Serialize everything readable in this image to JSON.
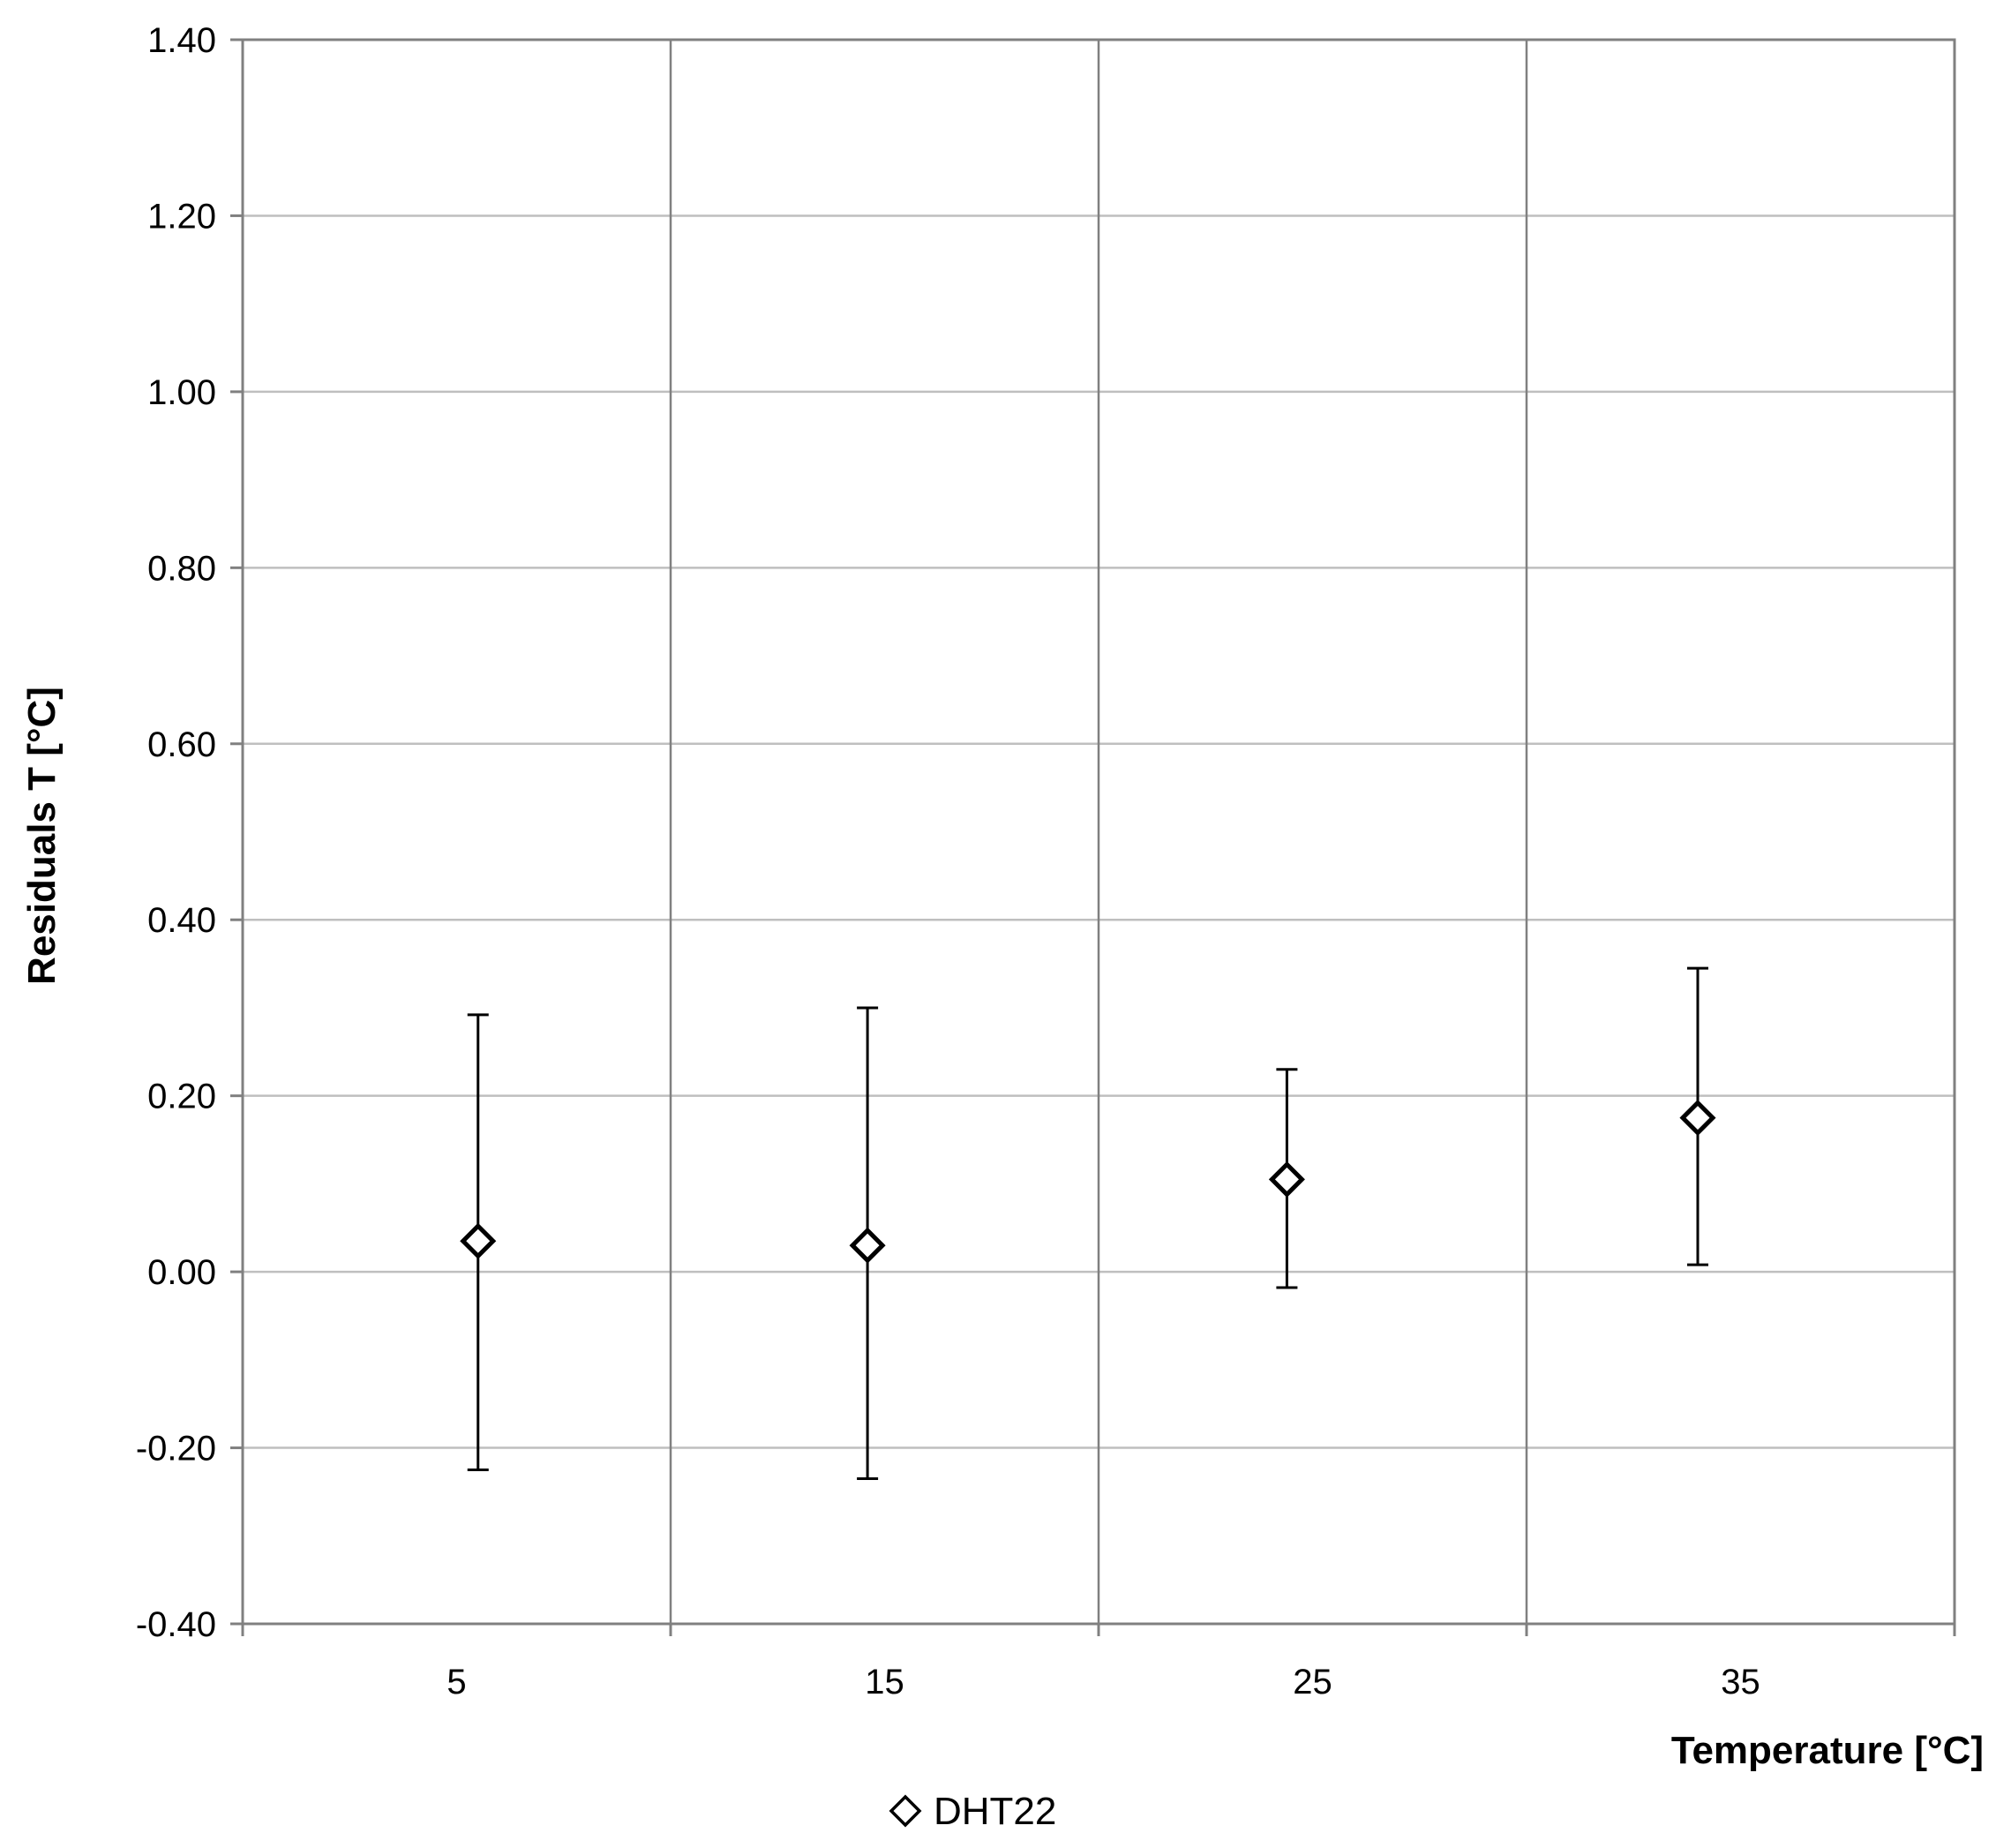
{
  "chart_data": {
    "type": "scatter",
    "xlabel": "Temperature [°C]",
    "ylabel": "Residuals T [°C]",
    "categories": [
      "5",
      "15",
      "25",
      "35"
    ],
    "ylim": [
      -0.4,
      1.4
    ],
    "y_ticks": [
      "1.40",
      "1.20",
      "1.00",
      "0.80",
      "0.60",
      "0.40",
      "0.20",
      "0.00",
      "-0.20",
      "-0.40"
    ],
    "grid": true,
    "legend_position": "bottom-center",
    "series": [
      {
        "name": "DHT22",
        "marker": "diamond-open",
        "color": "#000000",
        "values": [
          0.035,
          0.03,
          0.105,
          0.175
        ],
        "error_low": [
          -0.225,
          -0.235,
          -0.018,
          0.008
        ],
        "error_high": [
          0.292,
          0.3,
          0.23,
          0.345
        ]
      }
    ]
  }
}
